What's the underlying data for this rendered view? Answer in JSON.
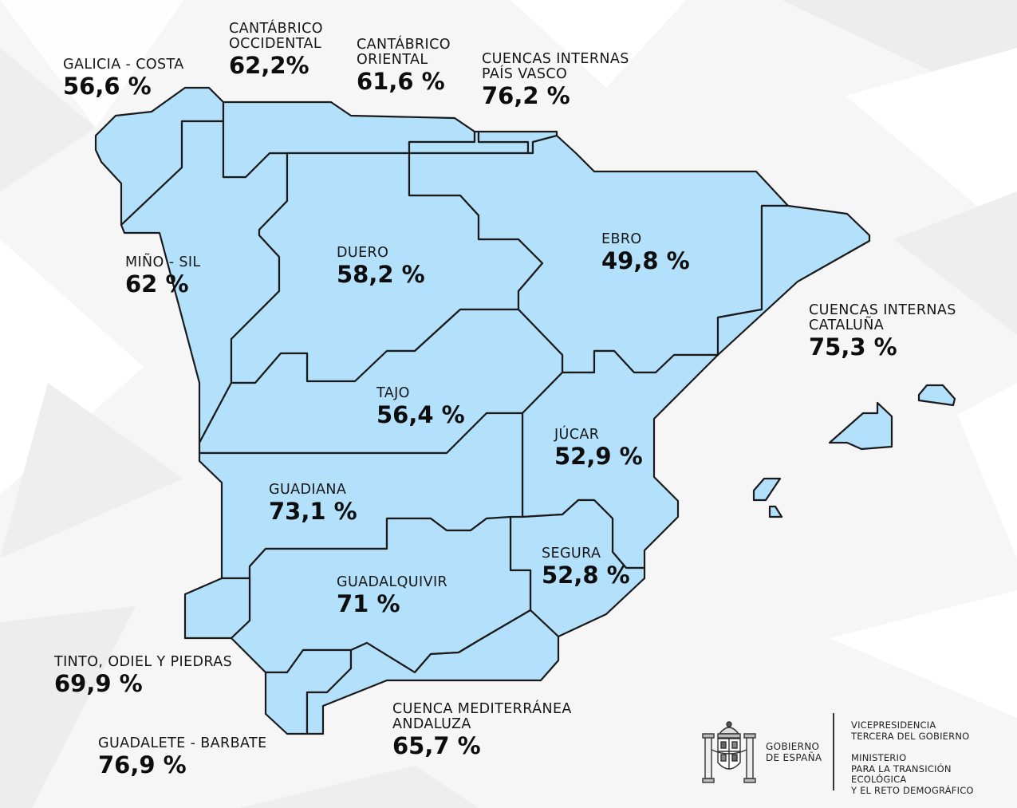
{
  "map": {
    "regions": [
      {
        "id": "galicia-costa",
        "name": "GALICIA - COSTA",
        "value": "56,6 %"
      },
      {
        "id": "mino-sil",
        "name": "MIÑO - SIL",
        "value": "62 %"
      },
      {
        "id": "cantabrico-occidental",
        "name": "CANTÁBRICO\nOCCIDENTAL",
        "value": "62,2%"
      },
      {
        "id": "cantabrico-oriental",
        "name": "CANTÁBRICO\nORIENTAL",
        "value": "61,6 %"
      },
      {
        "id": "cuencas-internas-pais-vasco",
        "name": "CUENCAS INTERNAS\nPAÍS VASCO",
        "value": "76,2 %"
      },
      {
        "id": "duero",
        "name": "DUERO",
        "value": "58,2 %"
      },
      {
        "id": "ebro",
        "name": "EBRO",
        "value": "49,8 %"
      },
      {
        "id": "cuencas-internas-cataluna",
        "name": "CUENCAS INTERNAS\nCATALUÑA",
        "value": "75,3 %"
      },
      {
        "id": "tajo",
        "name": "TAJO",
        "value": "56,4 %"
      },
      {
        "id": "jucar",
        "name": "JÚCAR",
        "value": "52,9 %"
      },
      {
        "id": "guadiana",
        "name": "GUADIANA",
        "value": "73,1 %"
      },
      {
        "id": "segura",
        "name": "SEGURA",
        "value": "52,8 %"
      },
      {
        "id": "guadalquivir",
        "name": "GUADALQUIVIR",
        "value": "71 %"
      },
      {
        "id": "tinto-odiel-piedras",
        "name": "TINTO, ODIEL Y PIEDRAS",
        "value": "69,9 %"
      },
      {
        "id": "guadalete-barbate",
        "name": "GUADALETE - BARBATE",
        "value": "76,9 %"
      },
      {
        "id": "cuenca-mediterranea-andaluza",
        "name": "CUENCA MEDITERRÁNEA\nANDALUZA",
        "value": "65,7 %"
      }
    ]
  },
  "footer": {
    "government": "GOBIERNO\nDE ESPAÑA",
    "vicepresidency": "VICEPRESIDENCIA\nTERCERA DEL GOBIERNO",
    "ministry": "MINISTERIO\nPARA LA TRANSICIÓN ECOLÓGICA\nY EL RETO DEMOGRÁFICO"
  },
  "colors": {
    "region_fill": "#b3e0fb",
    "border": "#1a1a1a",
    "background": "#f6f6f6"
  }
}
